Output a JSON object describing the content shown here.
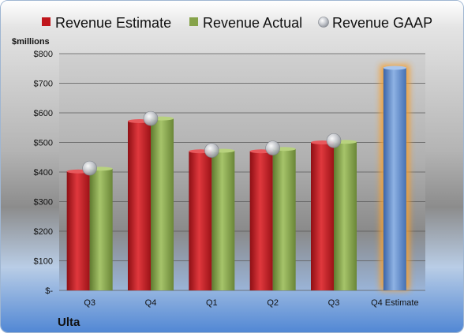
{
  "chart_data": {
    "type": "bar",
    "categories": [
      "Q3",
      "Q4",
      "Q1",
      "Q2",
      "Q3",
      "Q4 Estimate"
    ],
    "series": [
      {
        "name": "Revenue Estimate",
        "values": [
          402,
          572,
          470,
          470,
          500,
          null
        ]
      },
      {
        "name": "Revenue Actual",
        "values": [
          411,
          581,
          472,
          478,
          502,
          null
        ]
      },
      {
        "name": "Revenue GAAP",
        "values": [
          413,
          581,
          473,
          481,
          506,
          null
        ]
      }
    ],
    "forecast": {
      "category": "Q4 Estimate",
      "value": 752
    },
    "ylabel": "$millions",
    "ylim": [
      0,
      800
    ],
    "yticks": [
      {
        "value": 0,
        "label": "$-"
      },
      {
        "value": 100,
        "label": "$100"
      },
      {
        "value": 200,
        "label": "$200"
      },
      {
        "value": 300,
        "label": "$300"
      },
      {
        "value": 400,
        "label": "$400"
      },
      {
        "value": 500,
        "label": "$500"
      },
      {
        "value": 600,
        "label": "$600"
      },
      {
        "value": 700,
        "label": "$700"
      },
      {
        "value": 800,
        "label": "$800"
      }
    ],
    "grid": true,
    "legend_position": "top",
    "company": "Ulta",
    "colors": {
      "estimate": "#c0161c",
      "actual": "#86a34a",
      "gaap": "#b8bcc4",
      "forecast": "#5b86c5",
      "forecast_glow": "#f5a030"
    }
  }
}
